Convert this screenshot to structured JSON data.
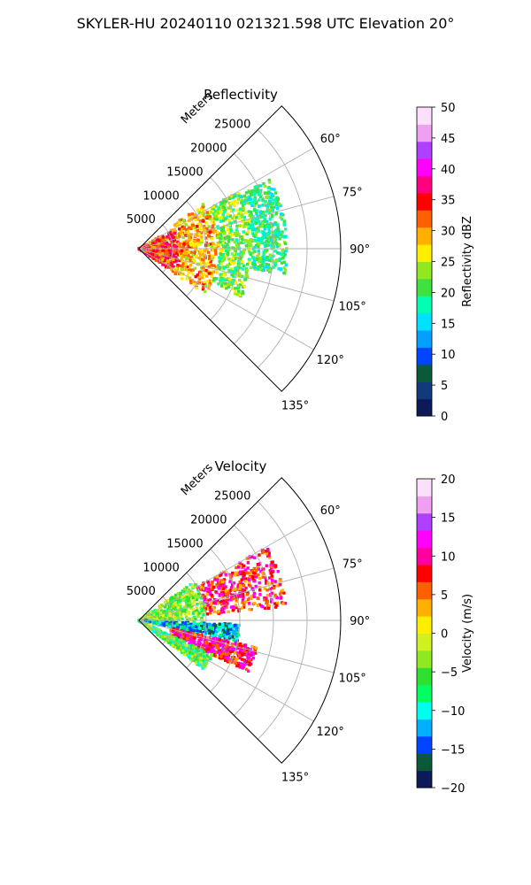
{
  "figure": {
    "title": "SKYLER-HU  20240110  021321.598 UTC Elevation 20°"
  },
  "chart_data": [
    {
      "type": "heatmap",
      "projection": "polar-sector",
      "title": "Reflectivity",
      "radial_axis_label": "Meters",
      "radial_ticks": [
        "5000",
        "10000",
        "15000",
        "20000",
        "25000"
      ],
      "radial_range_m": [
        0,
        30000
      ],
      "azimuth_ticks": [
        "60°",
        "75°",
        "90°",
        "105°",
        "120°",
        "135°"
      ],
      "azimuth_range_deg": [
        45,
        135
      ],
      "grid": true,
      "colorbar": {
        "label": "Reflectivity dBZ",
        "range": [
          0,
          50
        ],
        "ticks": [
          "0",
          "5",
          "10",
          "15",
          "20",
          "25",
          "30",
          "35",
          "40",
          "45",
          "50"
        ],
        "stops": [
          "#0c1a5a",
          "#123a7a",
          "#0a5a3a",
          "#0044ff",
          "#00a0ff",
          "#00e0ff",
          "#00ffb0",
          "#40e040",
          "#90e820",
          "#ffee00",
          "#ffb000",
          "#ff6000",
          "#ff0000",
          "#ff0080",
          "#ff00ff",
          "#b040ff",
          "#f0a0f0",
          "#fbe0fb"
        ]
      },
      "field_summary": [
        {
          "range_m": [
            0,
            6000
          ],
          "azimuth_deg": [
            60,
            125
          ],
          "value": 34
        },
        {
          "range_m": [
            6000,
            12000
          ],
          "azimuth_deg": [
            55,
            125
          ],
          "value": 29
        },
        {
          "range_m": [
            12000,
            17000
          ],
          "azimuth_deg": [
            60,
            115
          ],
          "value": 22
        },
        {
          "range_m": [
            17000,
            22000
          ],
          "azimuth_deg": [
            62,
            100
          ],
          "value": 19
        }
      ]
    },
    {
      "type": "heatmap",
      "projection": "polar-sector",
      "title": "Velocity",
      "radial_axis_label": "Meters",
      "radial_ticks": [
        "5000",
        "10000",
        "15000",
        "20000",
        "25000"
      ],
      "radial_range_m": [
        0,
        30000
      ],
      "azimuth_ticks": [
        "60°",
        "75°",
        "90°",
        "105°",
        "120°",
        "135°"
      ],
      "azimuth_range_deg": [
        45,
        135
      ],
      "grid": true,
      "colorbar": {
        "label": "Velocity (m/s)",
        "range": [
          -20,
          20
        ],
        "ticks": [
          "−20",
          "−15",
          "−10",
          "−5",
          "0",
          "5",
          "10",
          "15",
          "20"
        ],
        "stops": [
          "#0c1a5a",
          "#0a5a3a",
          "#0044ff",
          "#00b0ff",
          "#00ffee",
          "#00ff60",
          "#30e030",
          "#90e820",
          "#d0f020",
          "#ffee00",
          "#ffb000",
          "#ff6000",
          "#ff0000",
          "#ff00a0",
          "#ff00ff",
          "#b040ff",
          "#f0a0f0",
          "#fbe0fb"
        ]
      },
      "field_summary": [
        {
          "range_m": [
            0,
            10000
          ],
          "azimuth_deg": [
            55,
            90
          ],
          "value": -4
        },
        {
          "range_m": [
            10000,
            22000
          ],
          "azimuth_deg": [
            60,
            85
          ],
          "value": 8
        },
        {
          "range_m": [
            0,
            15000
          ],
          "azimuth_deg": [
            92,
            102
          ],
          "value": -12
        },
        {
          "range_m": [
            5000,
            18000
          ],
          "azimuth_deg": [
            103,
            115
          ],
          "value": 9
        },
        {
          "range_m": [
            0,
            12000
          ],
          "azimuth_deg": [
            115,
            127
          ],
          "value": -6
        }
      ]
    }
  ]
}
